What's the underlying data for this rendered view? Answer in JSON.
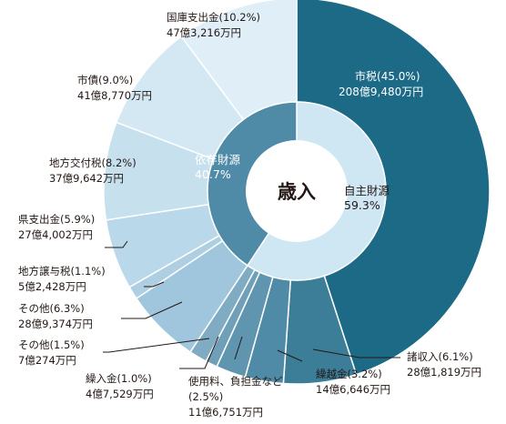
{
  "chart_data": {
    "type": "pie",
    "title": "歳入",
    "inner": [
      {
        "name": "自主財源",
        "pct": "59.3%",
        "value": 59.3,
        "color": "#cfe6f3"
      },
      {
        "name": "依存財源",
        "pct": "40.7%",
        "value": 40.7,
        "color": "#4f8aa7"
      }
    ],
    "outer": [
      {
        "name": "市税",
        "pct": "(45.0%)",
        "amount": "208億9,480万円",
        "value": 45.0,
        "color": "#1d6a87"
      },
      {
        "name": "諸収入",
        "pct": "(6.1%)",
        "amount": "28億1,819万円",
        "value": 6.1,
        "color": "#3c7d98"
      },
      {
        "name": "繰越金",
        "pct": "(3.2%)",
        "amount": "14億6,646万円",
        "value": 3.2,
        "color": "#4f8aa7"
      },
      {
        "name": "使用料、負担金など",
        "pct": "(2.5%)",
        "amount": "11億6,751万円",
        "value": 2.5,
        "color": "#5f95af"
      },
      {
        "name": "繰入金",
        "pct": "(1.0%)",
        "amount": "4億7,529万円",
        "value": 1.0,
        "color": "#6fa0b8"
      },
      {
        "name": "その他",
        "pct": "(1.5%)",
        "amount": "7億274万円",
        "value": 1.5,
        "color": "#7facc2"
      },
      {
        "name": "その他",
        "pct": "(6.3%)",
        "amount": "28億9,374万円",
        "value": 6.3,
        "color": "#9fc6dc"
      },
      {
        "name": "地方譲与税",
        "pct": "(1.1%)",
        "amount": "5億2,428万円",
        "value": 1.1,
        "color": "#aecfe2"
      },
      {
        "name": "県支出金",
        "pct": "(5.9%)",
        "amount": "27億4,002万円",
        "value": 5.9,
        "color": "#b9d8ea"
      },
      {
        "name": "地方交付税",
        "pct": "(8.2%)",
        "amount": "37億9,642万円",
        "value": 8.2,
        "color": "#c6e0ee"
      },
      {
        "name": "市債",
        "pct": "(9.0%)",
        "amount": "41億8,770万円",
        "value": 9.0,
        "color": "#d3e8f3"
      },
      {
        "name": "国庫支出金",
        "pct": "(10.2%)",
        "amount": "47億3,216万円",
        "value": 10.2,
        "color": "#dfeef7"
      }
    ]
  }
}
